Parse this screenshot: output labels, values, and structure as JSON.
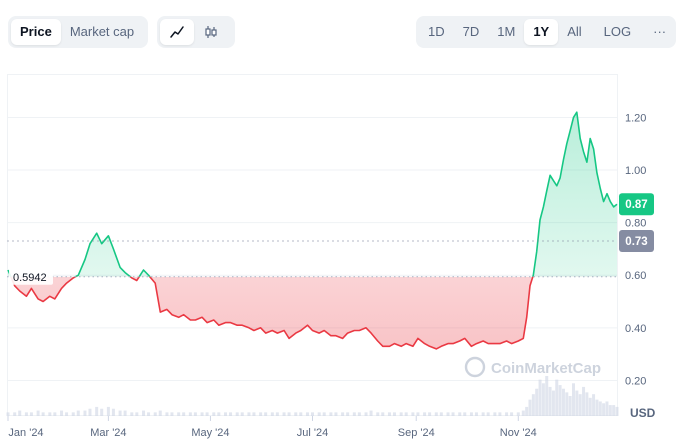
{
  "toolbar": {
    "metric_tabs": [
      {
        "label": "Price",
        "active": true
      },
      {
        "label": "Market cap",
        "active": false
      }
    ],
    "chart_type": [
      {
        "icon": "line-chart-icon",
        "active": true
      },
      {
        "icon": "candlestick-icon",
        "active": false
      }
    ],
    "ranges": [
      {
        "label": "1D",
        "active": false
      },
      {
        "label": "7D",
        "active": false
      },
      {
        "label": "1M",
        "active": false
      },
      {
        "label": "1Y",
        "active": true
      },
      {
        "label": "All",
        "active": false
      }
    ],
    "log_label": "LOG",
    "more_label": "···"
  },
  "watermark": "CoinMarketCap",
  "colors": {
    "up": "#16c784",
    "down": "#ea3943",
    "grid": "#eff2f5",
    "current_badge": "#16c784",
    "baseline_badge": "#858ca2"
  },
  "chart_data": {
    "type": "area",
    "x_type": "date",
    "x": [
      "2024-01-01",
      "2024-01-05",
      "2024-01-08",
      "2024-01-12",
      "2024-01-15",
      "2024-01-19",
      "2024-01-22",
      "2024-01-26",
      "2024-01-29",
      "2024-02-02",
      "2024-02-05",
      "2024-02-09",
      "2024-02-12",
      "2024-02-16",
      "2024-02-19",
      "2024-02-23",
      "2024-02-26",
      "2024-03-01",
      "2024-03-04",
      "2024-03-08",
      "2024-03-11",
      "2024-03-15",
      "2024-03-18",
      "2024-03-22",
      "2024-03-25",
      "2024-03-29",
      "2024-04-01",
      "2024-04-05",
      "2024-04-08",
      "2024-04-12",
      "2024-04-15",
      "2024-04-19",
      "2024-04-22",
      "2024-04-26",
      "2024-04-29",
      "2024-05-03",
      "2024-05-06",
      "2024-05-10",
      "2024-05-13",
      "2024-05-17",
      "2024-05-20",
      "2024-05-24",
      "2024-05-27",
      "2024-05-31",
      "2024-06-03",
      "2024-06-07",
      "2024-06-10",
      "2024-06-14",
      "2024-06-17",
      "2024-06-21",
      "2024-06-24",
      "2024-06-28",
      "2024-07-01",
      "2024-07-05",
      "2024-07-08",
      "2024-07-12",
      "2024-07-15",
      "2024-07-19",
      "2024-07-22",
      "2024-07-26",
      "2024-07-29",
      "2024-08-02",
      "2024-08-05",
      "2024-08-09",
      "2024-08-12",
      "2024-08-16",
      "2024-08-19",
      "2024-08-23",
      "2024-08-26",
      "2024-08-30",
      "2024-09-02",
      "2024-09-06",
      "2024-09-09",
      "2024-09-13",
      "2024-09-16",
      "2024-09-20",
      "2024-09-23",
      "2024-09-27",
      "2024-09-30",
      "2024-10-04",
      "2024-10-07",
      "2024-10-11",
      "2024-10-14",
      "2024-10-18",
      "2024-10-21",
      "2024-10-25",
      "2024-10-28",
      "2024-11-01",
      "2024-11-04",
      "2024-11-06",
      "2024-11-08",
      "2024-11-10",
      "2024-11-12",
      "2024-11-14",
      "2024-11-16",
      "2024-11-18",
      "2024-11-20",
      "2024-11-22",
      "2024-11-24",
      "2024-11-26",
      "2024-11-28",
      "2024-11-30",
      "2024-12-02",
      "2024-12-04",
      "2024-12-06",
      "2024-12-08",
      "2024-12-10",
      "2024-12-12",
      "2024-12-14",
      "2024-12-16",
      "2024-12-18",
      "2024-12-20",
      "2024-12-22",
      "2024-12-24",
      "2024-12-26",
      "2024-12-28",
      "2024-12-30"
    ],
    "values": [
      0.62,
      0.56,
      0.54,
      0.52,
      0.55,
      0.51,
      0.5,
      0.52,
      0.51,
      0.55,
      0.57,
      0.59,
      0.6,
      0.66,
      0.72,
      0.76,
      0.72,
      0.75,
      0.7,
      0.63,
      0.61,
      0.59,
      0.58,
      0.62,
      0.6,
      0.57,
      0.46,
      0.47,
      0.45,
      0.44,
      0.45,
      0.43,
      0.43,
      0.44,
      0.42,
      0.43,
      0.41,
      0.42,
      0.42,
      0.41,
      0.41,
      0.4,
      0.39,
      0.4,
      0.38,
      0.39,
      0.38,
      0.39,
      0.36,
      0.38,
      0.39,
      0.41,
      0.39,
      0.38,
      0.39,
      0.37,
      0.37,
      0.36,
      0.38,
      0.39,
      0.39,
      0.4,
      0.38,
      0.35,
      0.33,
      0.33,
      0.34,
      0.33,
      0.34,
      0.33,
      0.36,
      0.34,
      0.33,
      0.32,
      0.33,
      0.34,
      0.34,
      0.35,
      0.36,
      0.33,
      0.34,
      0.35,
      0.34,
      0.34,
      0.34,
      0.35,
      0.34,
      0.35,
      0.36,
      0.44,
      0.56,
      0.6,
      0.69,
      0.81,
      0.86,
      0.92,
      0.98,
      0.96,
      0.94,
      0.97,
      1.04,
      1.1,
      1.15,
      1.2,
      1.22,
      1.12,
      1.07,
      1.03,
      1.12,
      1.08,
      0.99,
      0.93,
      0.88,
      0.91,
      0.88,
      0.86,
      0.87
    ],
    "baseline": 0.5942,
    "baseline_label": "0.5942",
    "current_value_label": "0.87",
    "price_line_label": "0.73",
    "price_line": 0.73,
    "ylim": [
      0.08,
      1.35
    ],
    "y_ticks": [
      "1.20",
      "1.00",
      "0.80",
      "0.60",
      "0.40",
      "0.20"
    ],
    "y_tick_values": [
      1.2,
      1.0,
      0.8,
      0.6,
      0.4,
      0.2
    ],
    "x_ticks": [
      "Jan '24",
      "Mar '24",
      "May '24",
      "Jul '24",
      "Sep '24",
      "Nov '24"
    ],
    "x_tick_dates": [
      "2024-01-01",
      "2024-03-01",
      "2024-05-01",
      "2024-07-01",
      "2024-09-01",
      "2024-11-01"
    ],
    "currency_label": "USD",
    "volume": "bars along the bottom axis, low through most of the year, spiking in November and December",
    "volume_values": [
      2,
      2,
      3,
      2,
      2,
      3,
      2,
      2,
      2,
      3,
      2,
      2,
      3,
      3,
      4,
      5,
      4,
      5,
      4,
      3,
      3,
      2,
      2,
      3,
      2,
      2,
      3,
      2,
      2,
      2,
      2,
      2,
      2,
      2,
      2,
      2,
      2,
      2,
      2,
      2,
      2,
      2,
      2,
      2,
      2,
      2,
      2,
      2,
      2,
      2,
      2,
      2,
      2,
      2,
      2,
      2,
      2,
      2,
      2,
      2,
      2,
      2,
      3,
      2,
      2,
      2,
      2,
      2,
      2,
      2,
      2,
      2,
      2,
      2,
      2,
      2,
      2,
      2,
      2,
      2,
      2,
      2,
      2,
      2,
      2,
      2,
      2,
      2,
      3,
      5,
      9,
      12,
      15,
      20,
      18,
      22,
      16,
      14,
      20,
      17,
      15,
      13,
      11,
      18,
      14,
      12,
      16,
      13,
      10,
      12,
      9,
      8,
      7,
      8,
      6,
      6,
      5
    ]
  }
}
